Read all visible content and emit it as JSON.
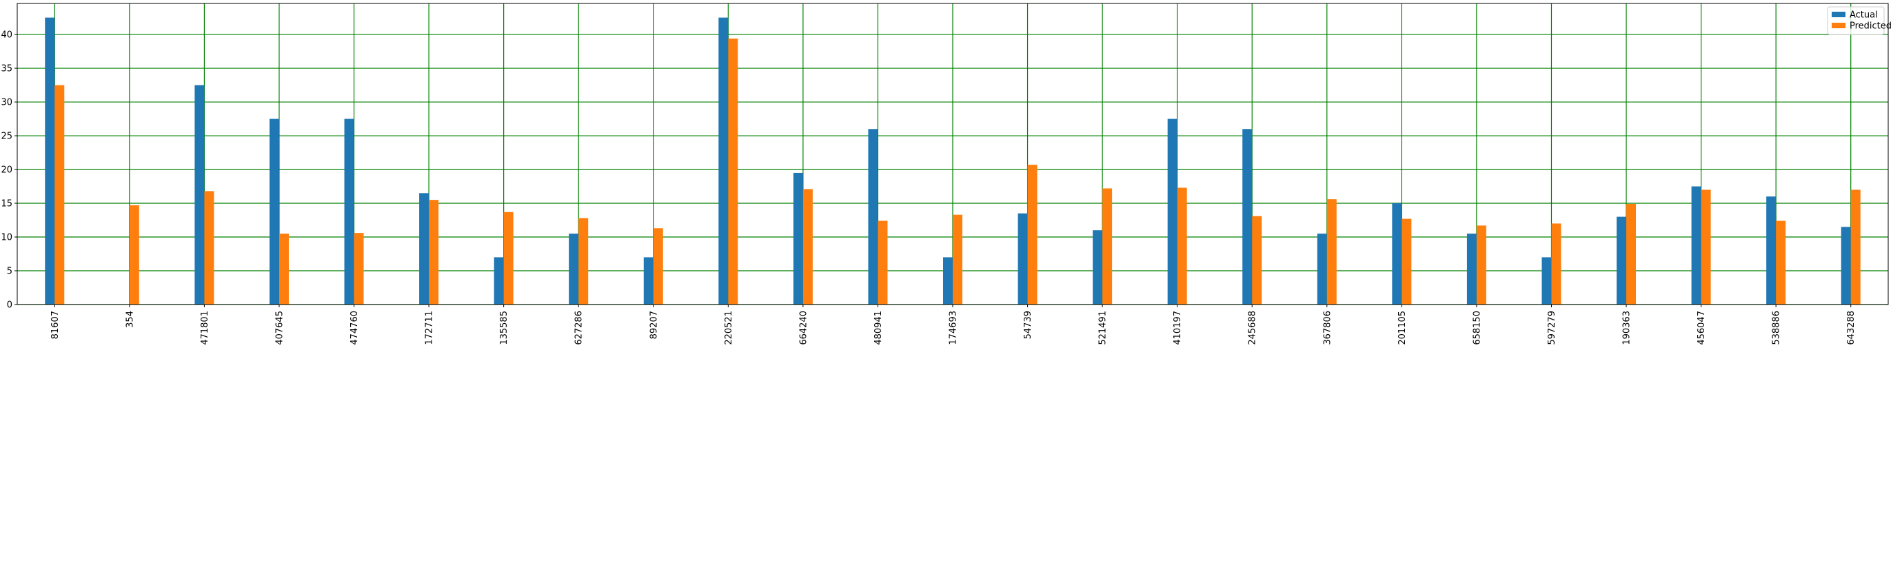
{
  "chart_data": {
    "type": "bar",
    "categories": [
      "81607",
      "354",
      "471801",
      "407645",
      "474760",
      "172711",
      "135585",
      "627286",
      "89207",
      "220521",
      "664240",
      "480941",
      "174693",
      "54739",
      "521491",
      "410197",
      "245688",
      "367806",
      "201105",
      "658150",
      "597279",
      "190363",
      "456047",
      "538886",
      "643288"
    ],
    "series": [
      {
        "name": "Actual",
        "color": "#1f77b4",
        "values": [
          42.5,
          0,
          32.5,
          27.5,
          27.5,
          16.5,
          7.0,
          10.5,
          7.0,
          42.5,
          19.5,
          26.0,
          7.0,
          13.5,
          11.0,
          27.5,
          26.0,
          10.5,
          15.0,
          10.5,
          7.0,
          13.0,
          17.5,
          16.0,
          11.5
        ]
      },
      {
        "name": "Predicted",
        "color": "#ff7f0e",
        "values": [
          32.5,
          14.7,
          16.8,
          10.5,
          10.6,
          15.5,
          13.7,
          12.8,
          11.3,
          39.4,
          17.1,
          12.4,
          13.3,
          20.7,
          17.2,
          17.3,
          13.1,
          15.6,
          12.7,
          11.7,
          12.0,
          14.9,
          17.0,
          12.4,
          17.0
        ]
      }
    ],
    "title": "",
    "xlabel": "",
    "ylabel": "",
    "ylim": [
      0,
      44.6
    ],
    "yticks": [
      0,
      5,
      10,
      15,
      20,
      25,
      30,
      35,
      40
    ],
    "grid": true,
    "grid_color": "#008000",
    "legend": "top-right",
    "xtick_rotation": 90
  }
}
